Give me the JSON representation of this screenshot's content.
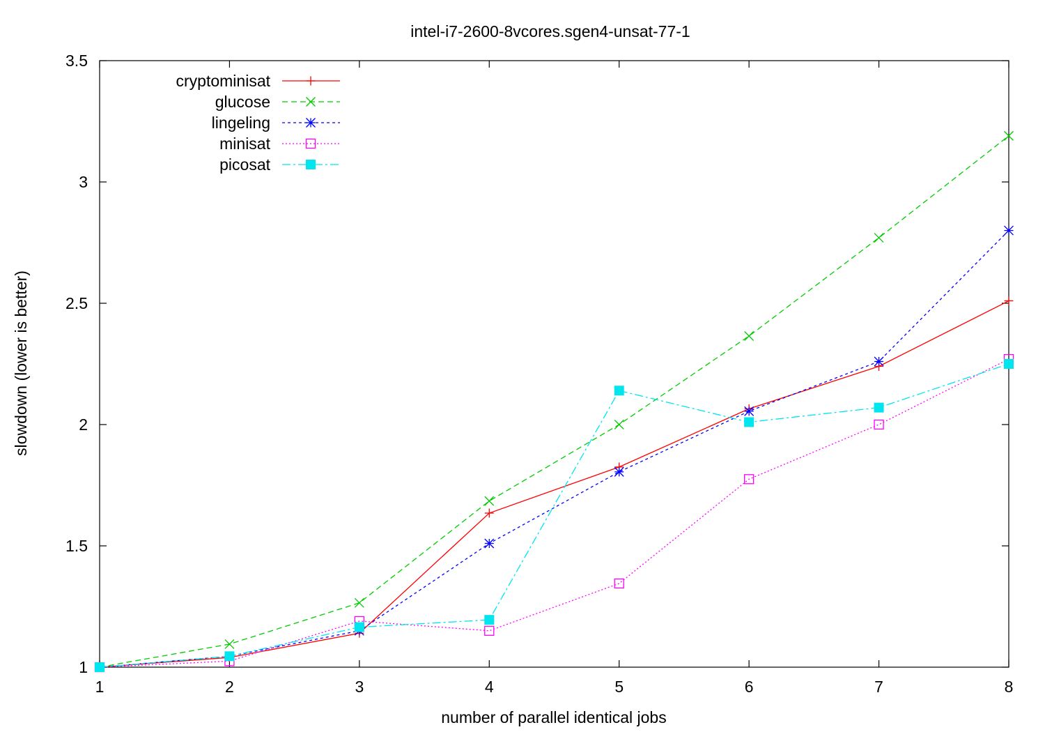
{
  "chart_data": {
    "type": "line",
    "title": "intel-i7-2600-8vcores.sgen4-unsat-77-1",
    "xlabel": "number of parallel identical jobs",
    "ylabel": "slowdown (lower is better)",
    "xlim": [
      1,
      8
    ],
    "ylim": [
      1,
      3.5
    ],
    "xticks": [
      1,
      2,
      3,
      4,
      5,
      6,
      7,
      8
    ],
    "yticks": [
      1,
      1.5,
      2,
      2.5,
      3,
      3.5
    ],
    "xtick_labels": [
      "1",
      "2",
      "3",
      "4",
      "5",
      "6",
      "7",
      "8"
    ],
    "ytick_labels": [
      "1",
      "1.5",
      "2",
      "2.5",
      "3",
      "3.5"
    ],
    "grid": false,
    "legend_position": "top-left",
    "x": [
      1,
      2,
      3,
      4,
      5,
      6,
      7,
      8
    ],
    "series": [
      {
        "name": "cryptominisat",
        "color": "#ff0000",
        "dash": "",
        "marker": "plus",
        "values": [
          1.0,
          1.04,
          1.14,
          1.635,
          1.825,
          2.065,
          2.24,
          2.51
        ]
      },
      {
        "name": "glucose",
        "color": "#00cc00",
        "dash": "8,5",
        "marker": "cross",
        "values": [
          1.0,
          1.095,
          1.265,
          1.685,
          2.0,
          2.365,
          2.77,
          3.19
        ]
      },
      {
        "name": "lingeling",
        "color": "#0000ff",
        "dash": "4,4",
        "marker": "star",
        "values": [
          1.0,
          1.045,
          1.15,
          1.51,
          1.805,
          2.055,
          2.26,
          2.8
        ]
      },
      {
        "name": "minisat",
        "color": "#ff00ff",
        "dash": "2,3",
        "marker": "open-square",
        "values": [
          1.0,
          1.025,
          1.19,
          1.15,
          1.345,
          1.775,
          2.0,
          2.27
        ]
      },
      {
        "name": "picosat",
        "color": "#00e5ee",
        "dash": "12,4,3,4",
        "marker": "filled-square",
        "values": [
          1.0,
          1.045,
          1.165,
          1.195,
          2.14,
          2.01,
          2.07,
          2.25
        ]
      }
    ]
  }
}
